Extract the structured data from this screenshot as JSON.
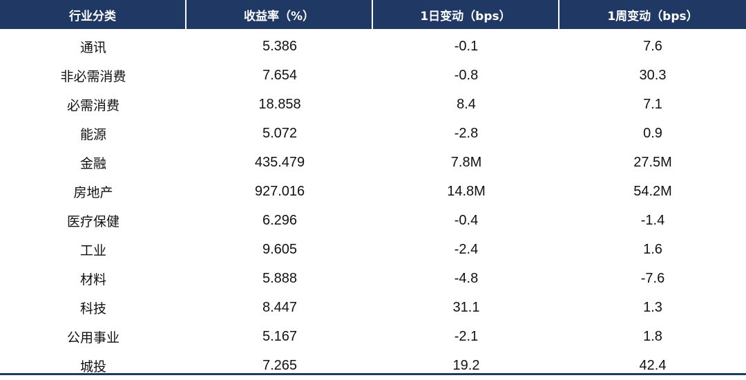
{
  "table": {
    "headers": [
      "行业分类",
      "收益率（%）",
      "1日变动（bps）",
      "1周变动（bps）"
    ],
    "rows": [
      [
        "通讯",
        "5.386",
        "-0.1",
        "7.6"
      ],
      [
        "非必需消费",
        "7.654",
        "-0.8",
        "30.3"
      ],
      [
        "必需消费",
        "18.858",
        "8.4",
        "7.1"
      ],
      [
        "能源",
        "5.072",
        "-2.8",
        "0.9"
      ],
      [
        "金融",
        "435.479",
        "7.8M",
        "27.5M"
      ],
      [
        "房地产",
        "927.016",
        "14.8M",
        "54.2M"
      ],
      [
        "医疗保健",
        "6.296",
        "-0.4",
        "-1.4"
      ],
      [
        "工业",
        "9.605",
        "-2.4",
        "1.6"
      ],
      [
        "材料",
        "5.888",
        "-4.8",
        "-7.6"
      ],
      [
        "科技",
        "8.447",
        "31.1",
        "1.3"
      ],
      [
        "公用事业",
        "5.167",
        "-2.1",
        "1.8"
      ],
      [
        "城投",
        "7.265",
        "19.2",
        "42.4"
      ]
    ]
  },
  "colors": {
    "header_bg": "#1f3864",
    "header_text": "#ffffff",
    "body_text": "#111111"
  }
}
